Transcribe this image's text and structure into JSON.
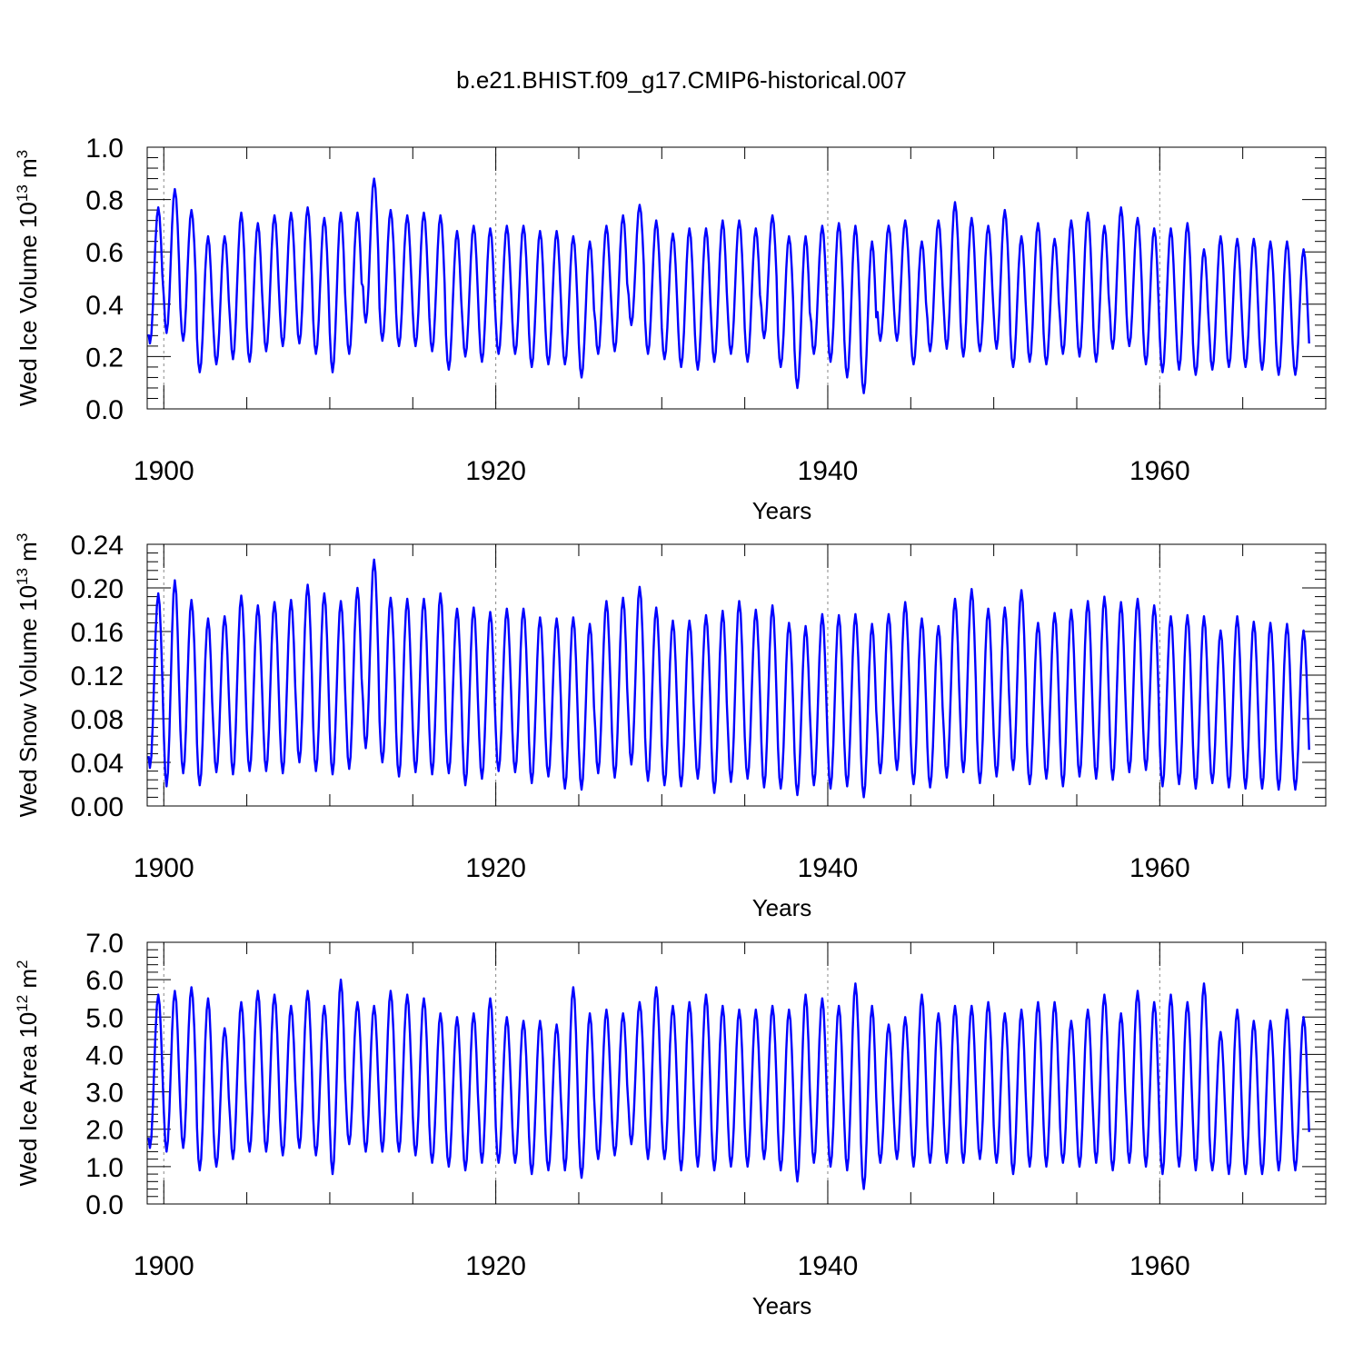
{
  "chart_data": {
    "title": "b.e21.BHIST.f09_g17.CMIP6-historical.007",
    "panels": [
      {
        "type": "line",
        "ylabel": "Wed Ice Volume 10",
        "ylabel_exp": "13",
        "ylabel_unit": " m",
        "ylabel_unit_exp": "3",
        "xlabel": "Years",
        "xlim": [
          1899,
          1970
        ],
        "ylim": [
          0.0,
          1.0
        ],
        "yticks": [
          "0.0",
          "0.2",
          "0.4",
          "0.6",
          "0.8",
          "1.0"
        ],
        "xticks": [
          "1900",
          "1920",
          "1940",
          "1960"
        ],
        "color": "#0000ff",
        "series": {
          "name": "Wed Ice Volume",
          "start_year": 1899,
          "maxima": [
            0.77,
            0.84,
            0.76,
            0.66,
            0.66,
            0.75,
            0.71,
            0.74,
            0.75,
            0.77,
            0.73,
            0.75,
            0.75,
            0.88,
            0.76,
            0.74,
            0.75,
            0.74,
            0.68,
            0.7,
            0.69,
            0.7,
            0.7,
            0.68,
            0.68,
            0.66,
            0.64,
            0.7,
            0.74,
            0.78,
            0.72,
            0.67,
            0.69,
            0.69,
            0.72,
            0.72,
            0.69,
            0.74,
            0.66,
            0.66,
            0.7,
            0.71,
            0.7,
            0.64,
            0.7,
            0.72,
            0.64,
            0.72,
            0.79,
            0.73,
            0.7,
            0.76,
            0.66,
            0.71,
            0.65,
            0.72,
            0.75,
            0.7,
            0.77,
            0.73,
            0.69,
            0.69,
            0.71,
            0.61,
            0.66,
            0.65,
            0.65,
            0.64,
            0.64,
            0.61
          ],
          "minima": [
            0.25,
            0.29,
            0.26,
            0.14,
            0.17,
            0.19,
            0.18,
            0.22,
            0.24,
            0.25,
            0.21,
            0.14,
            0.21,
            0.33,
            0.26,
            0.24,
            0.24,
            0.22,
            0.15,
            0.2,
            0.18,
            0.21,
            0.21,
            0.16,
            0.17,
            0.17,
            0.12,
            0.21,
            0.22,
            0.32,
            0.21,
            0.19,
            0.16,
            0.15,
            0.18,
            0.21,
            0.18,
            0.27,
            0.16,
            0.08,
            0.21,
            0.18,
            0.12,
            0.06,
            0.26,
            0.26,
            0.17,
            0.22,
            0.23,
            0.2,
            0.22,
            0.23,
            0.16,
            0.18,
            0.17,
            0.21,
            0.2,
            0.18,
            0.23,
            0.24,
            0.17,
            0.14,
            0.15,
            0.13,
            0.15,
            0.16,
            0.16,
            0.15,
            0.13,
            0.13
          ]
        }
      },
      {
        "type": "line",
        "ylabel": "Wed Snow Volume 10",
        "ylabel_exp": "13",
        "ylabel_unit": " m",
        "ylabel_unit_exp": "3",
        "xlabel": "Years",
        "xlim": [
          1899,
          1970
        ],
        "ylim": [
          0.0,
          0.24
        ],
        "yticks": [
          "0.00",
          "0.04",
          "0.08",
          "0.12",
          "0.16",
          "0.20",
          "0.24"
        ],
        "xticks": [
          "1900",
          "1920",
          "1940",
          "1960"
        ],
        "color": "#0000ff",
        "series": {
          "name": "Wed Snow Volume",
          "start_year": 1899,
          "maxima": [
            0.195,
            0.207,
            0.189,
            0.172,
            0.174,
            0.193,
            0.184,
            0.187,
            0.189,
            0.203,
            0.195,
            0.188,
            0.2,
            0.226,
            0.191,
            0.19,
            0.19,
            0.195,
            0.181,
            0.182,
            0.178,
            0.181,
            0.181,
            0.173,
            0.172,
            0.173,
            0.167,
            0.188,
            0.191,
            0.201,
            0.182,
            0.17,
            0.17,
            0.175,
            0.179,
            0.188,
            0.18,
            0.184,
            0.168,
            0.165,
            0.176,
            0.175,
            0.176,
            0.167,
            0.176,
            0.187,
            0.172,
            0.165,
            0.19,
            0.199,
            0.181,
            0.182,
            0.198,
            0.168,
            0.177,
            0.18,
            0.188,
            0.192,
            0.187,
            0.19,
            0.184,
            0.174,
            0.175,
            0.174,
            0.161,
            0.174,
            0.169,
            0.168,
            0.167,
            0.161
          ],
          "minima": [
            0.035,
            0.018,
            0.03,
            0.019,
            0.031,
            0.029,
            0.032,
            0.032,
            0.03,
            0.04,
            0.032,
            0.029,
            0.034,
            0.053,
            0.04,
            0.027,
            0.031,
            0.029,
            0.03,
            0.019,
            0.025,
            0.032,
            0.031,
            0.021,
            0.027,
            0.016,
            0.015,
            0.03,
            0.026,
            0.038,
            0.023,
            0.019,
            0.018,
            0.025,
            0.012,
            0.022,
            0.025,
            0.017,
            0.016,
            0.01,
            0.019,
            0.016,
            0.018,
            0.008,
            0.03,
            0.033,
            0.02,
            0.017,
            0.026,
            0.031,
            0.021,
            0.027,
            0.033,
            0.02,
            0.025,
            0.018,
            0.027,
            0.025,
            0.024,
            0.031,
            0.033,
            0.018,
            0.02,
            0.016,
            0.021,
            0.017,
            0.016,
            0.016,
            0.015,
            0.015
          ]
        }
      },
      {
        "type": "line",
        "ylabel": "Wed Ice Area 10",
        "ylabel_exp": "12",
        "ylabel_unit": " m",
        "ylabel_unit_exp": "2",
        "xlabel": "Years",
        "xlim": [
          1899,
          1970
        ],
        "ylim": [
          0.0,
          7.0
        ],
        "yticks": [
          "0.0",
          "1.0",
          "2.0",
          "3.0",
          "4.0",
          "5.0",
          "6.0",
          "7.0"
        ],
        "xticks": [
          "1900",
          "1920",
          "1940",
          "1960"
        ],
        "color": "#0000ff",
        "series": {
          "name": "Wed Ice Area",
          "start_year": 1899,
          "maxima": [
            5.6,
            5.7,
            5.8,
            5.5,
            4.7,
            5.4,
            5.7,
            5.6,
            5.3,
            5.7,
            5.3,
            6.0,
            5.4,
            5.3,
            5.7,
            5.6,
            5.5,
            5.1,
            5.0,
            5.1,
            5.5,
            5.0,
            4.9,
            4.9,
            4.8,
            5.8,
            5.1,
            5.2,
            5.1,
            5.4,
            5.8,
            5.3,
            5.4,
            5.6,
            5.3,
            5.2,
            5.2,
            5.3,
            5.2,
            5.6,
            5.5,
            5.3,
            5.9,
            5.3,
            4.8,
            5.0,
            5.6,
            5.1,
            5.3,
            5.3,
            5.4,
            5.1,
            5.2,
            5.4,
            5.4,
            4.9,
            5.2,
            5.6,
            5.1,
            5.7,
            5.4,
            5.6,
            5.4,
            5.9,
            4.6,
            5.2,
            4.9,
            4.9,
            5.2,
            5.0
          ],
          "minima": [
            1.5,
            1.4,
            1.5,
            0.9,
            1.0,
            1.2,
            1.4,
            1.4,
            1.3,
            1.5,
            1.3,
            0.8,
            1.6,
            1.4,
            1.4,
            1.4,
            1.3,
            1.1,
            1.0,
            0.9,
            1.1,
            1.1,
            1.1,
            0.8,
            0.9,
            0.9,
            0.7,
            1.2,
            1.3,
            1.6,
            1.2,
            1.2,
            0.9,
            1.0,
            0.9,
            1.0,
            1.0,
            1.2,
            0.9,
            0.6,
            1.1,
            1.0,
            0.9,
            0.4,
            1.1,
            1.2,
            1.0,
            1.1,
            1.1,
            1.1,
            1.2,
            1.1,
            0.8,
            1.0,
            1.0,
            1.1,
            1.0,
            1.1,
            0.9,
            1.1,
            1.0,
            0.8,
            1.0,
            0.9,
            0.9,
            0.8,
            0.8,
            0.8,
            0.9,
            0.9
          ]
        }
      }
    ]
  }
}
